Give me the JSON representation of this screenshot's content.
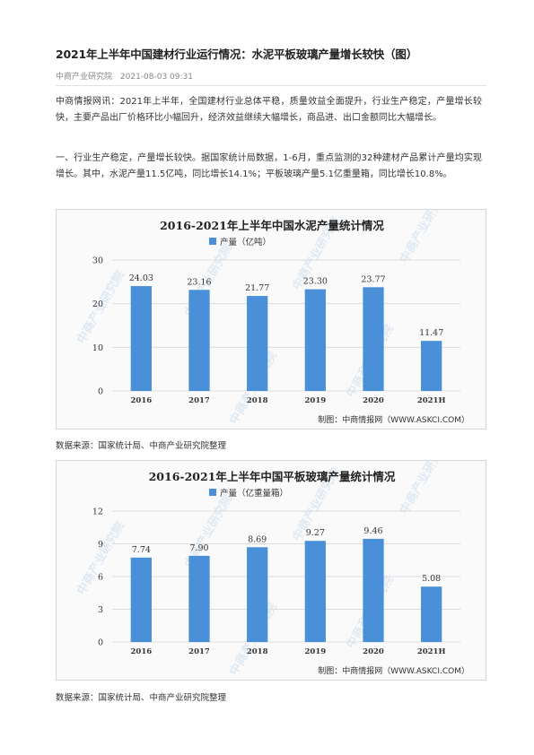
{
  "article": {
    "title": "2021年上半年中国建材行业运行情况：水泥平板玻璃产量增长较快（图）",
    "source": "中商产业研究院",
    "date": "2021-08-03 09:31",
    "paragraph1": "中商情报网讯：2021年上半年，全国建材行业总体平稳，质量效益全面提升，行业生产稳定，产量增长较快，主要产品出厂价格环比小幅回升，经济效益继续大幅增长，商品进、出口金额同比大幅增长。",
    "paragraph2": "一、行业生产稳定，产量增长较快。据国家统计局数据，1-6月，重点监测的32种建材产品累计产量均实现增长。其中，水泥产量11.5亿吨，同比增长14.1%；平板玻璃产量5.1亿重量箱，同比增长10.8%。",
    "data_source_1": "数据来源：国家统计局、中商产业研究院整理",
    "data_source_2": "数据来源：国家统计局、中商产业研究院整理"
  },
  "colors": {
    "bar": "#4a90d9",
    "grid": "#dddddd",
    "watermark": "#c9dcef"
  },
  "watermark_text": "中商产业研究院",
  "chart_data": [
    {
      "type": "bar",
      "title": "2016-2021年上半年中国水泥产量统计情况",
      "legend": "产量（亿吨）",
      "categories": [
        "2016",
        "2017",
        "2018",
        "2019",
        "2020",
        "2021H"
      ],
      "series": [
        {
          "name": "产量（亿吨）",
          "values": [
            24.03,
            23.16,
            21.77,
            23.3,
            23.77,
            11.47
          ]
        }
      ],
      "value_labels": [
        "24.03",
        "23.16",
        "21.77",
        "23.30",
        "23.77",
        "11.47"
      ],
      "yticks": [
        "0",
        "10",
        "20",
        "30"
      ],
      "ylim": [
        0,
        30
      ],
      "credit": "制图：中商情报网（WWW.ASKCI.COM）",
      "grid": true,
      "legend_position": "top"
    },
    {
      "type": "bar",
      "title": "2016-2021年上半年中国平板玻璃产量统计情况",
      "legend": "产量（亿重量箱）",
      "categories": [
        "2016",
        "2017",
        "2018",
        "2019",
        "2020",
        "2021H"
      ],
      "series": [
        {
          "name": "产量（亿重量箱）",
          "values": [
            7.74,
            7.9,
            8.69,
            9.27,
            9.46,
            5.08
          ]
        }
      ],
      "value_labels": [
        "7.74",
        "7.90",
        "8.69",
        "9.27",
        "9.46",
        "5.08"
      ],
      "yticks": [
        "0",
        "3",
        "6",
        "9",
        "12"
      ],
      "ylim": [
        0,
        12
      ],
      "credit": "制图：中商情报网（WWW.ASKCI.COM）",
      "grid": true,
      "legend_position": "top"
    }
  ]
}
